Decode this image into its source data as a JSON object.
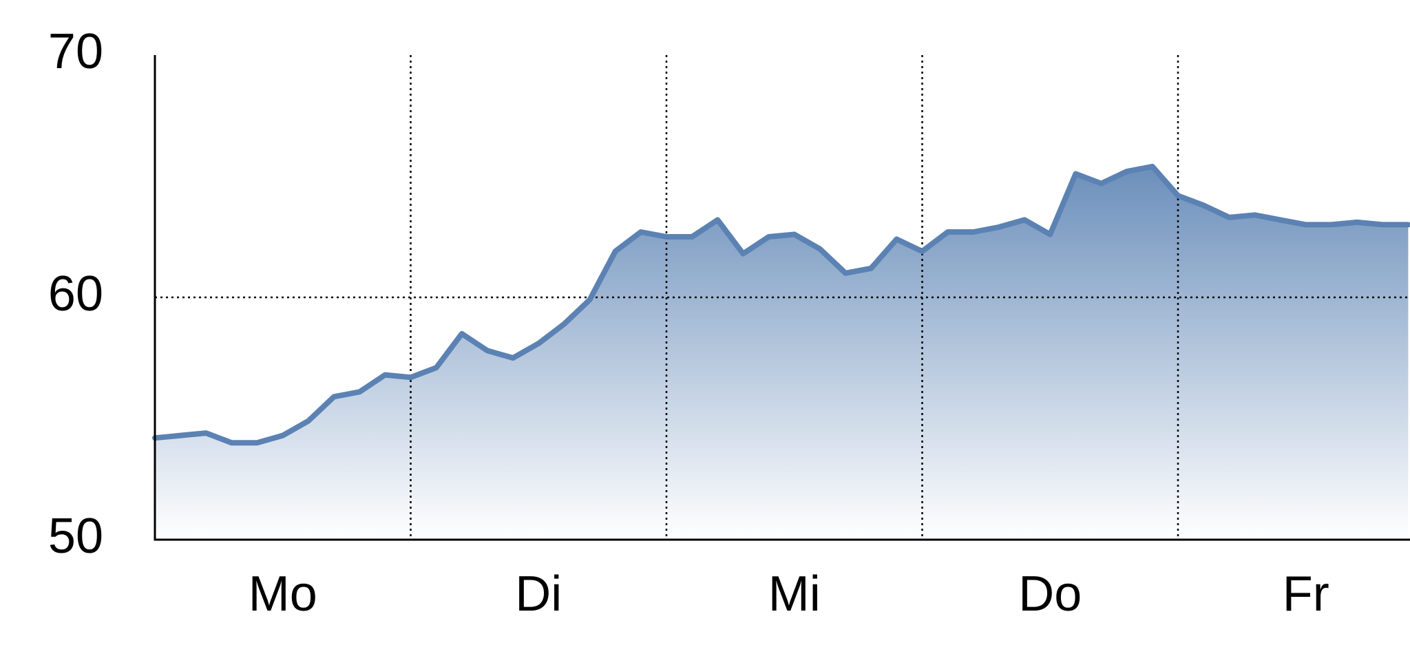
{
  "chart_data": {
    "type": "area",
    "title": "",
    "xlabel": "",
    "ylabel": "",
    "categories": [
      "Mo",
      "Di",
      "Mi",
      "Do",
      "Fr"
    ],
    "y_ticks": [
      "70",
      "60",
      "50"
    ],
    "ylim": [
      50,
      70
    ],
    "grid": {
      "vertical_at_category_boundaries": true,
      "horizontal_at": [
        60
      ],
      "style": "dotted"
    },
    "colors": {
      "line": "#5b82b3",
      "fill_top": "#6b8fbb",
      "fill_bottom": "#ffffff",
      "axis": "#000000",
      "grid": "#000000"
    },
    "series": [
      {
        "x": [
          0.0,
          0.2,
          0.3,
          0.4,
          0.5,
          0.6,
          0.7,
          0.8,
          0.9,
          1.0,
          1.1,
          1.2,
          1.3,
          1.4,
          1.5,
          1.6,
          1.7,
          1.8,
          1.9,
          2.0,
          2.1,
          2.2,
          2.3,
          2.4,
          2.5,
          2.6,
          2.7,
          2.8,
          2.9,
          3.0,
          3.1,
          3.2,
          3.3,
          3.4,
          3.5,
          3.6,
          3.7,
          3.8,
          3.9,
          4.0,
          4.1,
          4.2,
          4.3,
          4.4,
          4.5,
          4.6,
          4.7,
          4.8,
          4.9
        ],
        "values": [
          54.2,
          54.4,
          54.0,
          54.0,
          54.3,
          54.9,
          55.9,
          56.1,
          56.8,
          56.7,
          57.1,
          58.5,
          57.8,
          57.5,
          58.1,
          58.9,
          59.9,
          61.9,
          62.7,
          62.5,
          62.5,
          63.2,
          61.8,
          62.5,
          62.6,
          62.0,
          61.0,
          61.2,
          62.4,
          61.9,
          62.7,
          62.7,
          62.9,
          63.2,
          62.6,
          65.1,
          64.7,
          65.2,
          65.4,
          64.2,
          63.8,
          63.3,
          63.4,
          63.2,
          63.0,
          63.0,
          63.1,
          63.0,
          63.0
        ]
      }
    ]
  }
}
